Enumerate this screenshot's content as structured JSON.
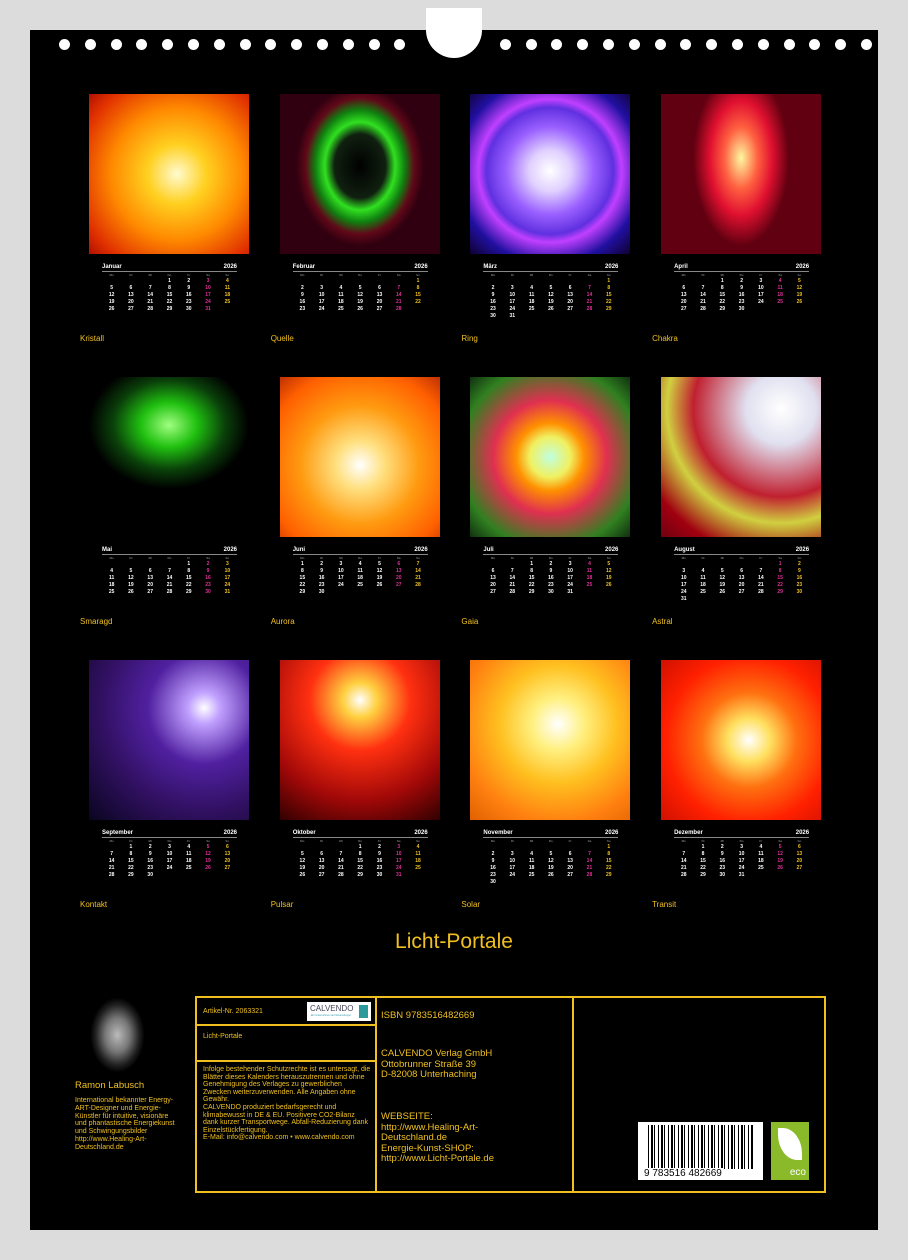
{
  "title": "Licht-Portale",
  "year": "2026",
  "weekdays": [
    "Mo",
    "Di",
    "Mi",
    "Do",
    "Fr",
    "Sa",
    "So"
  ],
  "months": [
    {
      "name": "Januar",
      "caption": "Kristall",
      "bg": "radial-gradient(circle at 55% 50%,#fffbd0 0%,#ffd020 25%,#ff8a00 55%,#e03000 85%,#b01000 100%)"
    },
    {
      "name": "Februar",
      "caption": "Quelle",
      "bg": "radial-gradient(ellipse 40% 50% at 50% 45%,#000 0,#102010 40%,#30e020 55%,#108010 70%,#600818 85%,#300010 100%)"
    },
    {
      "name": "März",
      "caption": "Ring",
      "bg": "radial-gradient(circle at 50% 48%,#fff 0,#e0d0ff 18%,#9a60ff 38%,#6030e0 55%,#c040ff 62%,#2010a0 80%,#100030 100%)"
    },
    {
      "name": "April",
      "caption": "Chakra",
      "bg": "radial-gradient(ellipse 30% 55% at 50% 40%,#fff8a0 0,#ff6040 35%,#e01030 65%,#600010 100%)"
    },
    {
      "name": "Mai",
      "caption": "Smaragd",
      "bg": "radial-gradient(ellipse 50% 40% at 50% 30%,#a0ff80 0,#20c010 35%,#0a400a 70%,#000 100%)"
    },
    {
      "name": "Juni",
      "caption": "Aurora",
      "bg": "radial-gradient(circle at 50% 55%,#fff 0,#ffe080 20%,#ff9a10 50%,#ff6000 80%,#c03000 100%)"
    },
    {
      "name": "Juli",
      "caption": "Gaia",
      "bg": "radial-gradient(circle at 50% 50%,#c0ffe0 0,#f0f060 18%,#ff9000 30%,#e03050 50%,#308020 80%,#103010 100%)"
    },
    {
      "name": "August",
      "caption": "Astral",
      "bg": "radial-gradient(circle at 75% 20%,#fff 0,#e0e0f0 20%,#c02030 50%,#d0d040 65%,#a00010 85%,#700010 100%)"
    },
    {
      "name": "September",
      "caption": "Kontakt",
      "bg": "radial-gradient(circle at 72% 30%,#fff 0,#c0a0ff 10%,#5020a0 35%,#301060 65%,#0a0520 100%)"
    },
    {
      "name": "Oktober",
      "caption": "Pulsar",
      "bg": "radial-gradient(circle at 50% 25%,#fff 0,#ffd040 12%,#ff3010 35%,#a00808 70%,#300000 100%)"
    },
    {
      "name": "November",
      "caption": "Solar",
      "bg": "radial-gradient(circle at 55% 40%,#fff 0,#fff080 20%,#ffc020 45%,#ff8010 75%,#e06000 100%)"
    },
    {
      "name": "Dezember",
      "caption": "Transit",
      "bg": "radial-gradient(circle at 55% 50%,#fff 0,#ffe060 18%,#ff7010 40%,#ff2000 70%,#d01000 100%)"
    }
  ],
  "author": {
    "name": "Ramon Labusch",
    "bio": "International bekannter Energy-ART-Designer und Energie-Künstler für intuitive, visionäre und phantastische Energiekunst und Schwingungsbilder http://www.Healing-Art-Deutschland.de"
  },
  "info": {
    "article": "Artikel-Nr. 2063321",
    "calvendo_logo": "CALVENDO",
    "calvendo_sub": "Ein Unternehmen der Ravensburger",
    "product_title": "Licht-Portale",
    "legal": "Infolge bestehender Schutzrechte ist es untersagt, die Blätter dieses Kalenders herauszutrennen und ohne Genehmigung des Verlages zu gewerblichen Zwecken weiterzuverwenden. Alle Angaben ohne Gewähr.\nCALVENDO produziert bedarfsgerecht und klimabewusst in DE & EU. Positivere CO2-Bilanz dank kurzer Transportwege. Abfall-Reduzierung dank Einzelstückfertigung.\nE-Mail: info@calvendo.com • www.calvendo.com",
    "isbn": "ISBN 9783516482669",
    "publisher": "CALVENDO Verlag GmbH\nOttobrunner Straße 39\nD-82008 Unterhaching",
    "web": "WEBSEITE:\nhttp://www.Healing-Art-Deutschland.de\nEnergie-Kunst-SHOP:\nhttp://www.Licht-Portale.de",
    "barcode_number": "9 783516 482669",
    "eco_label": "eco"
  }
}
